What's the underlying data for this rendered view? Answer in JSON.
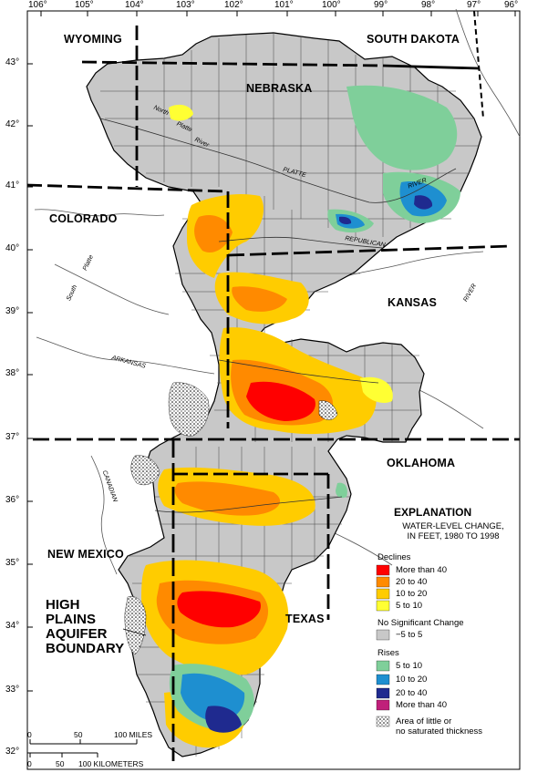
{
  "colors": {
    "background": "#ffffff",
    "aquifer_gray": "#c8c8c8",
    "declines_more_than_40": "#ff0000",
    "declines_20_to_40": "#ff8a00",
    "declines_10_to_20": "#ffcc00",
    "declines_5_to_10": "#ffff33",
    "no_change": "#c8c8c8",
    "rises_5_to_10": "#7fcf9a",
    "rises_10_to_20": "#1e8fd0",
    "rises_20_to_40": "#1f2a8f",
    "rises_more_than_40": "#c0207a"
  },
  "longitudes": [
    "106°",
    "105°",
    "104°",
    "103°",
    "102°",
    "101°",
    "100°",
    "99°",
    "98°",
    "97°",
    "96°"
  ],
  "latitudes": [
    "43°",
    "42°",
    "41°",
    "40°",
    "39°",
    "38°",
    "37°",
    "36°",
    "35°",
    "34°",
    "33°",
    "32°"
  ],
  "states": {
    "wyoming": "WYOMING",
    "south_dakota": "SOUTH DAKOTA",
    "nebraska": "NEBRASKA",
    "colorado": "COLORADO",
    "kansas": "KANSAS",
    "oklahoma": "OKLAHOMA",
    "new_mexico": "NEW MEXICO",
    "texas": "TEXAS"
  },
  "rivers": {
    "north_platte": "North",
    "platte_word": "Platte",
    "river_word": "River",
    "platte": "PLATTE",
    "river_caps": "RIVER",
    "republican": "REPUBLICAN",
    "south_platte_a": "South",
    "south_platte_b": "Platte",
    "arkansas": "ARKANSAS",
    "canadian": "CANADIAN"
  },
  "aquifer_label": [
    "HIGH",
    "PLAINS",
    "AQUIFER",
    "BOUNDARY"
  ],
  "legend": {
    "title": "EXPLANATION",
    "subtitle_line1": "WATER-LEVEL CHANGE,",
    "subtitle_line2": "IN FEET, 1980 TO 1998",
    "declines_heading": "Declines",
    "declines": [
      "More than 40",
      "20 to 40",
      "10 to 20",
      "5 to 10"
    ],
    "no_change_heading": "No Significant Change",
    "no_change": "−5 to  5",
    "rises_heading": "Rises",
    "rises": [
      "5 to 10",
      "10 to 20",
      "20 to 40",
      "More than 40"
    ],
    "little_saturated_1": "Area of little or",
    "little_saturated_2": "no saturated thickness"
  },
  "scale_bar": {
    "miles": [
      "0",
      "50",
      "100 MILES"
    ],
    "km": [
      "0",
      "50",
      "100 KILOMETERS"
    ]
  }
}
